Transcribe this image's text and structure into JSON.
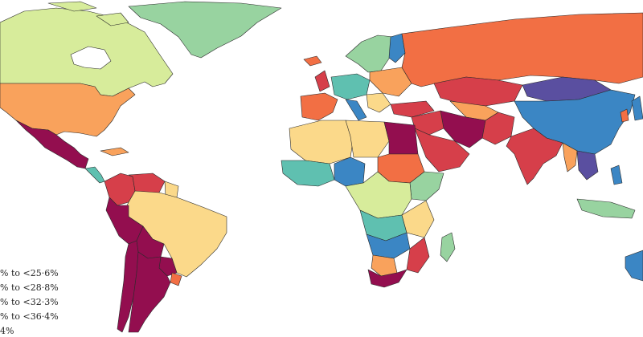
{
  "colors": {
    "c1": "#3b86c4",
    "c2": "#5fc0b0",
    "c3": "#98d3a0",
    "c4": "#d7ec9b",
    "c5": "#fbd98a",
    "c6": "#f9a25c",
    "c7": "#f26f44",
    "c8": "#d63f4a",
    "c9": "#930e4f",
    "c10": "#5a4fa0",
    "gray": "#c7c7c7"
  },
  "legend": {
    "items": [
      {
        "label": "% to <25·6%"
      },
      {
        "label": "% to <28·8%"
      },
      {
        "label": "% to <32·3%"
      },
      {
        "label": "% to <36·4%"
      },
      {
        "label": "4%"
      }
    ]
  },
  "regions": [
    {
      "name": "canada",
      "cls": "c4"
    },
    {
      "name": "usa",
      "cls": "c6"
    },
    {
      "name": "mexico",
      "cls": "c9"
    },
    {
      "name": "greenland",
      "cls": "c3"
    },
    {
      "name": "russia",
      "cls": "c7"
    },
    {
      "name": "china",
      "cls": "c1"
    },
    {
      "name": "mongolia",
      "cls": "c10"
    },
    {
      "name": "india",
      "cls": "c8"
    },
    {
      "name": "brazil",
      "cls": "c5"
    },
    {
      "name": "argentina",
      "cls": "c9"
    },
    {
      "name": "australia",
      "cls": "c1"
    },
    {
      "name": "south-africa",
      "cls": "c9"
    },
    {
      "name": "egypt",
      "cls": "c9"
    }
  ]
}
